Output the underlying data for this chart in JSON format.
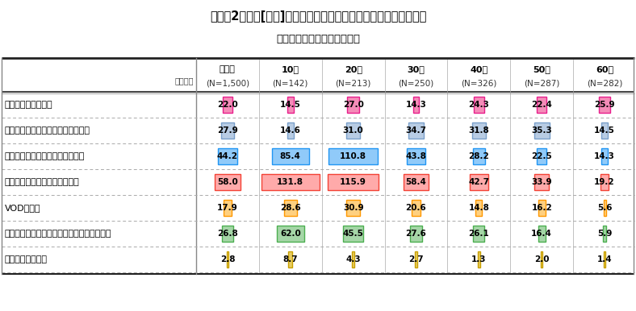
{
  "title_line1": "》令和2年度「[休日]インターネットの利用項目別の平均利用時間",
  "title_line1_raw": "【令和2年度】[休日]インターネットの利用項目別の平均利用時間",
  "title_line2_raw": "（全年代・年代別・男女別）",
  "unit_label": "単位：分",
  "col_headers_line1": [
    "全年代",
    "10代",
    "20代",
    "30代",
    "40代",
    "50代",
    "60代"
  ],
  "col_headers_line2": [
    "(N=1,500)",
    "(N=142)",
    "(N=213)",
    "(N=250)",
    "(N=326)",
    "(N=287)",
    "(N=282)"
  ],
  "row_labels": [
    "メールを読む・書く",
    "ブログやウェブサイトを見る・書く",
    "ソーシャルメディアを見る・書く",
    "動画投稿・共有サービスを見る",
    "VODを見る",
    "オンラインゲーム・ソーシャルゲームをする",
    "ネット通話を使う"
  ],
  "data": [
    [
      22.0,
      14.5,
      27.0,
      14.3,
      24.3,
      22.4,
      25.9
    ],
    [
      27.9,
      14.6,
      31.0,
      34.7,
      31.8,
      35.3,
      14.5
    ],
    [
      44.2,
      85.4,
      110.8,
      43.8,
      28.2,
      22.5,
      14.3
    ],
    [
      58.0,
      131.8,
      115.9,
      58.4,
      42.7,
      33.9,
      19.2
    ],
    [
      17.9,
      28.6,
      30.9,
      20.6,
      14.8,
      16.2,
      5.6
    ],
    [
      26.8,
      62.0,
      45.5,
      27.6,
      26.1,
      16.4,
      5.9
    ],
    [
      2.8,
      8.7,
      4.3,
      2.7,
      1.3,
      2.0,
      1.4
    ]
  ],
  "row_colors_dark": [
    "#E91E8C",
    "#7A9FCA",
    "#2196F3",
    "#F44336",
    "#FF9800",
    "#4CAF50",
    "#C8A000"
  ],
  "row_colors_light": [
    "#F48CB8",
    "#B8CCE4",
    "#90CAF9",
    "#FFAAAA",
    "#FFD080",
    "#A5D6A7",
    "#E8CC60"
  ],
  "max_val": 131.8,
  "bg_color": "#FFFFFF",
  "text_color": "#000000",
  "fig_width": 7.88,
  "fig_height": 3.86,
  "dpi": 100
}
